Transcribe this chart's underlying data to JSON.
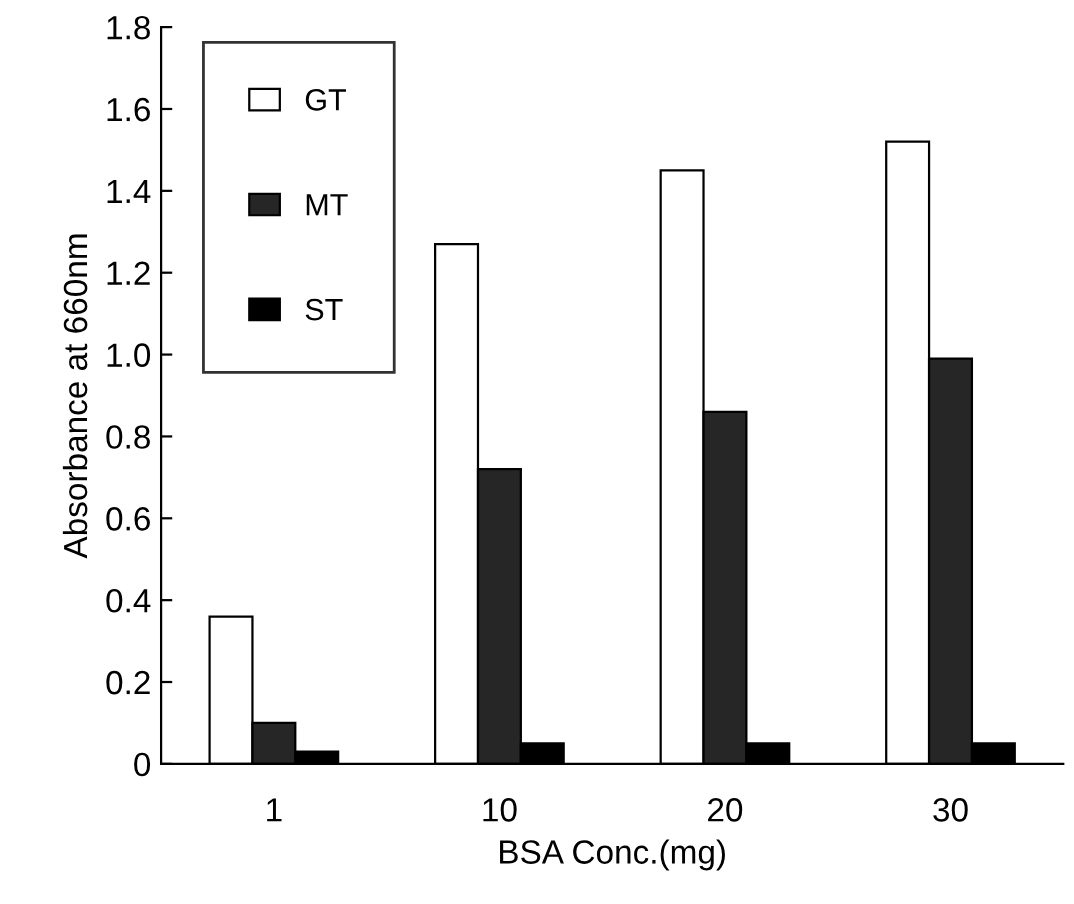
{
  "chart_data": {
    "type": "bar",
    "xlabel": "BSA Conc.(mg)",
    "ylabel": "Absorbance at 660nm",
    "categories": [
      "1",
      "10",
      "20",
      "30"
    ],
    "series": [
      {
        "name": "GT",
        "color": "#ffffff",
        "values": [
          0.36,
          1.27,
          1.45,
          1.52
        ]
      },
      {
        "name": "MT",
        "color": "#262626",
        "values": [
          0.1,
          0.72,
          0.86,
          0.99
        ]
      },
      {
        "name": "ST",
        "color": "#000000",
        "values": [
          0.03,
          0.05,
          0.05,
          0.05
        ]
      }
    ],
    "ylim": [
      0,
      1.8
    ],
    "yticks": [
      {
        "value": 0,
        "label": "0"
      },
      0.2,
      0.4,
      0.6,
      0.8,
      {
        "value": 1.0,
        "label": "1.0"
      },
      1.2,
      1.4,
      1.6,
      1.8
    ],
    "grid": false,
    "legend": "top left"
  }
}
